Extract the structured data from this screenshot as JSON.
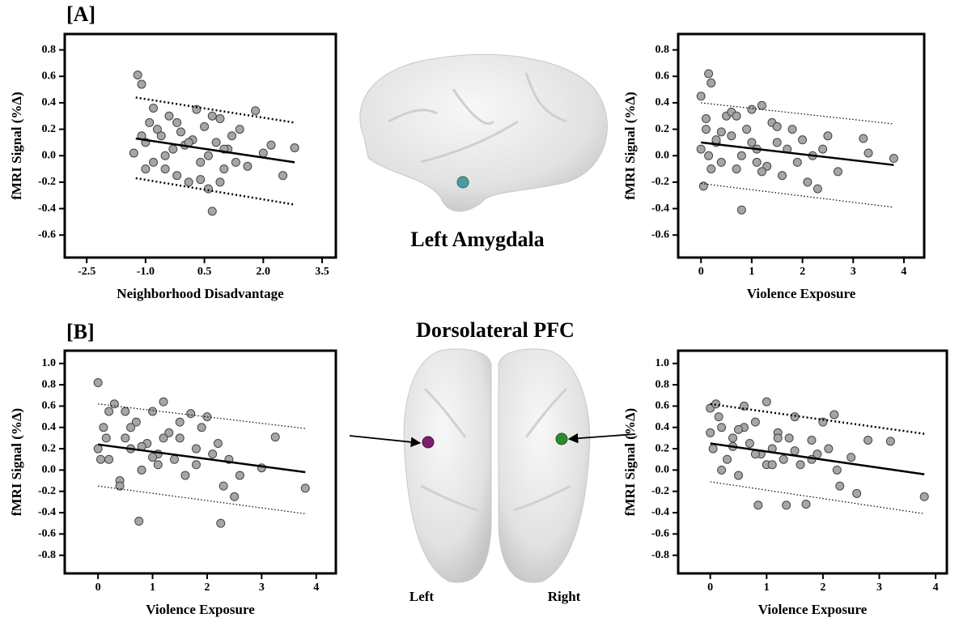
{
  "figure": {
    "panel_a": "[A]",
    "panel_b": "[B]",
    "region_a": "Left Amygdala",
    "region_b": "Dorsolateral PFC",
    "left": "Left",
    "right": "Right"
  },
  "chart_data": [
    {
      "type": "scatter",
      "xlabel": "Neighborhood Disadvantage",
      "ylabel": "fMRI Signal (%Δ)",
      "xlim": [
        -3.06,
        3.85
      ],
      "ylim": [
        -0.77,
        0.92
      ],
      "xticks": [
        -2.5,
        {
          "value": -1,
          "label": "-1.0"
        },
        0.5,
        {
          "value": 2,
          "label": "2.0"
        },
        3.5
      ],
      "yticks": [
        -0.6,
        -0.4,
        -0.2,
        {
          "value": 0,
          "label": "0.0"
        },
        0.2,
        0.4,
        0.6,
        0.8
      ],
      "series": [
        {
          "color": "#a6a6a6",
          "x": [
            -1.3,
            -1.2,
            -1.1,
            -1.0,
            -0.9,
            -0.8,
            -0.7,
            -0.6,
            -0.5,
            -0.4,
            -0.3,
            -0.2,
            -0.1,
            0,
            0.1,
            0.2,
            0.3,
            0.4,
            0.5,
            0.6,
            0.7,
            0.8,
            0.9,
            1.0,
            1.1,
            1.2,
            1.4,
            1.6,
            1.8,
            2.0,
            2.2,
            2.5,
            2.8,
            -1.0,
            -0.8,
            -0.5,
            -0.2,
            0.1,
            0.4,
            0.7,
            1.0,
            1.3,
            -1.1,
            0.6,
            0.9
          ],
          "values": [
            0.02,
            0.61,
            0.54,
            0.1,
            0.25,
            -0.05,
            0.2,
            0.15,
            -0.1,
            0.3,
            0.05,
            -0.15,
            0.18,
            0.08,
            -0.2,
            0.12,
            0.35,
            -0.05,
            0.22,
            -0.25,
            -0.42,
            0.1,
            0.28,
            -0.1,
            0.05,
            0.15,
            0.2,
            -0.08,
            0.34,
            0.02,
            0.08,
            -0.15,
            0.06,
            -0.1,
            0.36,
            0.0,
            0.25,
            0.1,
            -0.18,
            0.3,
            0.05,
            -0.05,
            0.15,
            0.0,
            -0.2
          ]
        }
      ],
      "lines": [
        {
          "x": [
            -1.25,
            2.8
          ],
          "values": [
            0.13,
            -0.05
          ],
          "color": "#000000",
          "dash": false,
          "width": 2.5
        },
        {
          "x": [
            -1.25,
            2.8
          ],
          "values": [
            0.44,
            0.25
          ],
          "color": "#000000",
          "dash": true,
          "width": 2.5
        },
        {
          "x": [
            -1.25,
            2.8
          ],
          "values": [
            -0.17,
            -0.37
          ],
          "color": "#000000",
          "dash": true,
          "width": 2.5
        }
      ]
    },
    {
      "type": "scatter",
      "xlabel": "Violence Exposure",
      "ylabel": "fMRI Signal (%Δ)",
      "xlim": [
        -0.45,
        4.4
      ],
      "ylim": [
        -0.77,
        0.92
      ],
      "xticks": [
        0,
        1,
        2,
        3,
        4
      ],
      "yticks": [
        -0.6,
        -0.4,
        -0.2,
        {
          "value": 0,
          "label": "0.0"
        },
        0.2,
        0.4,
        0.6,
        0.8
      ],
      "series": [
        {
          "color": "#a6a6a6",
          "x": [
            0,
            0.05,
            0.1,
            0.15,
            0.2,
            0.3,
            0.4,
            0.5,
            0.6,
            0.7,
            0.8,
            0.9,
            1.0,
            1.1,
            1.2,
            1.3,
            1.4,
            1.5,
            1.6,
            1.7,
            1.8,
            1.9,
            2.0,
            2.1,
            2.2,
            2.3,
            2.5,
            2.7,
            3.2,
            3.3,
            3.8,
            0,
            0.1,
            0.2,
            0.4,
            0.6,
            0.8,
            1.0,
            1.2,
            1.5,
            0.15,
            0.3,
            0.7,
            1.1,
            2.4
          ],
          "values": [
            0.45,
            -0.23,
            0.2,
            0.62,
            0.55,
            0.1,
            -0.05,
            0.3,
            0.15,
            -0.1,
            -0.41,
            0.2,
            0.35,
            0.05,
            0.38,
            -0.08,
            0.25,
            0.1,
            -0.15,
            0.05,
            0.2,
            -0.05,
            0.12,
            -0.2,
            0.0,
            -0.25,
            0.15,
            -0.12,
            0.13,
            0.02,
            -0.02,
            0.05,
            0.28,
            -0.1,
            0.18,
            0.33,
            0.0,
            0.1,
            -0.12,
            0.22,
            0.0,
            0.12,
            0.3,
            -0.05,
            0.05
          ]
        }
      ],
      "lines": [
        {
          "x": [
            0,
            3.8
          ],
          "values": [
            0.1,
            -0.07
          ],
          "color": "#000000",
          "dash": false,
          "width": 2.5
        },
        {
          "x": [
            0,
            3.8
          ],
          "values": [
            0.4,
            0.24
          ],
          "color": "#000000",
          "dash": true,
          "width": 1.2
        },
        {
          "x": [
            0,
            3.8
          ],
          "values": [
            -0.21,
            -0.39
          ],
          "color": "#000000",
          "dash": true,
          "width": 1.2
        }
      ]
    },
    {
      "type": "scatter",
      "xlabel": "Violence Exposure",
      "ylabel": "fMRI Signal (%Δ)",
      "xlim": [
        -0.61,
        4.36
      ],
      "ylim": [
        -0.97,
        1.12
      ],
      "xticks": [
        0,
        1,
        2,
        3,
        4
      ],
      "yticks": [
        -0.8,
        -0.6,
        -0.4,
        -0.2,
        {
          "value": 0,
          "label": "0.0"
        },
        0.2,
        0.4,
        0.6,
        0.8,
        {
          "value": 1,
          "label": "1.0"
        }
      ],
      "series": [
        {
          "color": "#a6a6a6",
          "x": [
            0,
            0.05,
            0.1,
            0.2,
            0.3,
            0.4,
            0.5,
            0.6,
            0.7,
            0.8,
            0.9,
            1.0,
            1.1,
            1.2,
            1.3,
            1.4,
            1.5,
            1.6,
            1.7,
            1.8,
            1.9,
            2.0,
            2.1,
            2.2,
            2.3,
            2.5,
            2.6,
            3.0,
            3.25,
            3.8,
            0,
            0.2,
            0.4,
            0.6,
            0.8,
            1.0,
            1.2,
            1.5,
            1.8,
            0.75,
            2.25,
            0.15,
            0.5,
            1.1,
            2.4
          ],
          "values": [
            0.82,
            0.1,
            0.4,
            0.55,
            0.62,
            -0.1,
            0.3,
            0.2,
            0.45,
            0.0,
            0.25,
            0.55,
            0.15,
            0.64,
            0.35,
            0.1,
            0.3,
            -0.05,
            0.53,
            0.2,
            0.4,
            0.5,
            0.15,
            0.25,
            -0.15,
            -0.25,
            -0.05,
            0.02,
            0.31,
            -0.17,
            0.2,
            0.1,
            -0.15,
            0.4,
            0.22,
            0.12,
            0.3,
            0.45,
            0.05,
            -0.48,
            -0.5,
            0.3,
            0.55,
            0.05,
            0.1
          ]
        }
      ],
      "lines": [
        {
          "x": [
            0,
            3.8
          ],
          "values": [
            0.24,
            -0.02
          ],
          "color": "#000000",
          "dash": false,
          "width": 2.5
        },
        {
          "x": [
            0,
            3.8
          ],
          "values": [
            0.62,
            0.39
          ],
          "color": "#000000",
          "dash": true,
          "width": 1.2
        },
        {
          "x": [
            0,
            3.8
          ],
          "values": [
            -0.15,
            -0.41
          ],
          "color": "#000000",
          "dash": true,
          "width": 1.2
        }
      ]
    },
    {
      "type": "scatter",
      "xlabel": "Violence Exposure",
      "ylabel": "fMRI Signal (%Δ)",
      "xlim": [
        -0.57,
        4.2
      ],
      "ylim": [
        -0.97,
        1.12
      ],
      "xticks": [
        0,
        1,
        2,
        3,
        4
      ],
      "yticks": [
        -0.8,
        -0.6,
        -0.4,
        -0.2,
        {
          "value": 0,
          "label": "0.0"
        },
        0.2,
        0.4,
        0.6,
        0.8,
        {
          "value": 1,
          "label": "1.0"
        }
      ],
      "series": [
        {
          "color": "#a6a6a6",
          "x": [
            0,
            0.05,
            0.1,
            0.2,
            0.3,
            0.4,
            0.5,
            0.6,
            0.7,
            0.8,
            0.9,
            1.0,
            1.1,
            1.2,
            1.3,
            1.4,
            1.5,
            1.6,
            1.7,
            1.8,
            1.9,
            2.0,
            2.1,
            2.2,
            2.3,
            2.5,
            2.6,
            2.8,
            3.2,
            3.8,
            0,
            0.2,
            0.4,
            0.6,
            0.8,
            1.0,
            1.2,
            1.5,
            1.8,
            0.85,
            1.35,
            2.25,
            0.15,
            0.5,
            1.1
          ],
          "values": [
            0.58,
            0.2,
            0.62,
            0.4,
            0.1,
            0.3,
            -0.05,
            0.6,
            0.25,
            0.45,
            0.15,
            0.64,
            0.2,
            0.35,
            0.1,
            0.3,
            0.5,
            0.05,
            -0.32,
            0.28,
            0.15,
            0.45,
            0.2,
            0.52,
            -0.15,
            0.12,
            -0.22,
            0.28,
            0.27,
            -0.25,
            0.35,
            0.0,
            0.22,
            0.4,
            0.15,
            0.05,
            0.3,
            0.18,
            0.1,
            -0.33,
            -0.33,
            0.0,
            0.5,
            0.38,
            0.05
          ]
        }
      ],
      "lines": [
        {
          "x": [
            0,
            3.8
          ],
          "values": [
            0.25,
            -0.04
          ],
          "color": "#000000",
          "dash": false,
          "width": 2.5
        },
        {
          "x": [
            0,
            3.8
          ],
          "values": [
            0.62,
            0.34
          ],
          "color": "#000000",
          "dash": true,
          "width": 2.5
        },
        {
          "x": [
            0,
            3.8
          ],
          "values": [
            -0.11,
            -0.41
          ],
          "color": "#000000",
          "dash": true,
          "width": 1.2
        }
      ]
    }
  ]
}
